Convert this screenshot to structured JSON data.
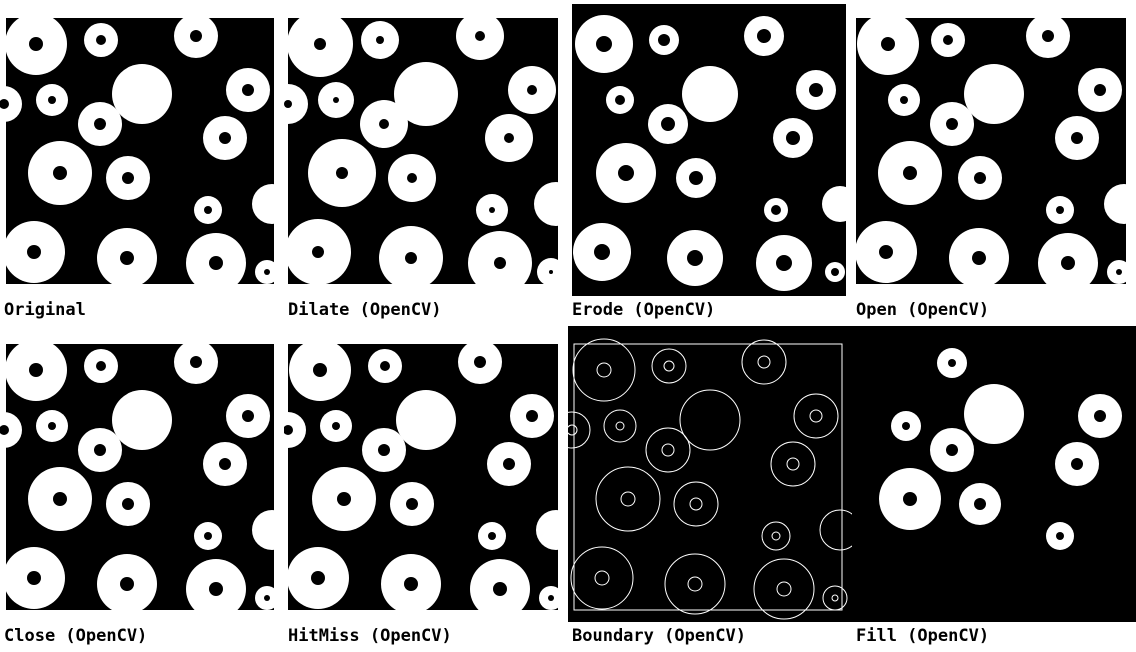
{
  "panels": [
    {
      "id": "original",
      "label": "Original"
    },
    {
      "id": "dilate",
      "label": "Dilate (OpenCV)"
    },
    {
      "id": "erode",
      "label": "Erode (OpenCV)"
    },
    {
      "id": "open",
      "label": "Open (OpenCV)"
    },
    {
      "id": "close",
      "label": "Close (OpenCV)"
    },
    {
      "id": "hitmiss",
      "label": "HitMiss (OpenCV)"
    },
    {
      "id": "boundary",
      "label": "Boundary (OpenCV)"
    },
    {
      "id": "fill",
      "label": "Fill (OpenCV)"
    }
  ],
  "colors": {
    "background": "#000000",
    "foreground": "#ffffff"
  }
}
